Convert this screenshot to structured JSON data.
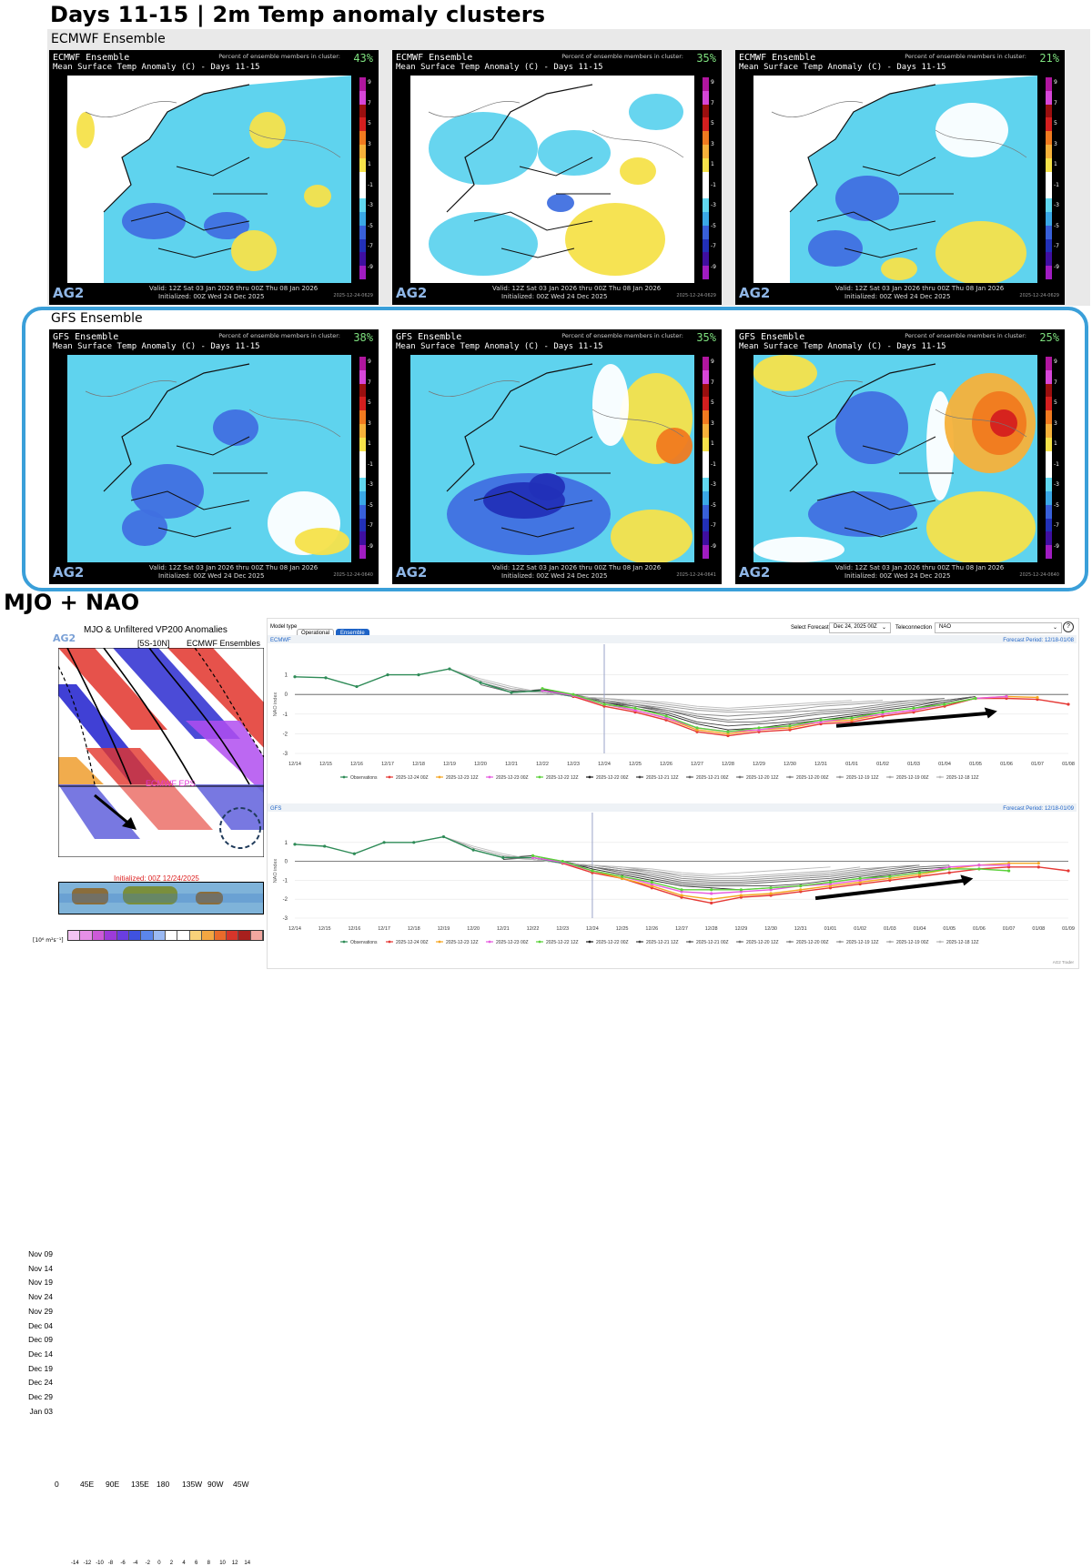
{
  "title": "Days 11-15 | 2m Temp anomaly clusters",
  "ecmwf_section_label": "ECMWF Ensemble",
  "gfs_section_label": "GFS Ensemble",
  "panel_common": {
    "subtitle": "Mean Surface Temp Anomaly (C) - Days 11-15",
    "pct_label": "Percent of ensemble members in cluster:",
    "logo": "AG2",
    "valid": "Valid: 12Z Sat 03 Jan 2026 thru 00Z Thu 08 Jan 2026",
    "init": "Initialized: 00Z Wed 24 Dec 2025",
    "colorbar_labels": [
      "9",
      "7",
      "5",
      "3",
      "1",
      "-1",
      "-3",
      "-5",
      "-7",
      "-9"
    ]
  },
  "ecmwf_panels": [
    {
      "model": "ECMWF Ensemble",
      "pct": "43%",
      "stamp": "2025-12-24-0629",
      "pattern": "cold-west"
    },
    {
      "model": "ECMWF Ensemble",
      "pct": "35%",
      "stamp": "2025-12-24-0629",
      "pattern": "mixed"
    },
    {
      "model": "ECMWF Ensemble",
      "pct": "21%",
      "stamp": "2025-12-24-0629",
      "pattern": "cold-central"
    }
  ],
  "gfs_panels": [
    {
      "model": "GFS Ensemble",
      "pct": "38%",
      "stamp": "2025-12-24-0640",
      "pattern": "cold-broad"
    },
    {
      "model": "GFS Ensemble",
      "pct": "35%",
      "stamp": "2025-12-24-0641",
      "pattern": "cold-deep"
    },
    {
      "model": "GFS Ensemble",
      "pct": "25%",
      "stamp": "2025-12-24-0640",
      "pattern": "warm-east"
    }
  ],
  "mjo_title": "MJO + NAO",
  "mjo_panel": {
    "heading": "MJO & Unfiltered VP200 Anomalies",
    "band": "[5S-10N]",
    "source": "ECMWF Ensembles",
    "logo": "AG2",
    "eps_label": "ECMWF EPS",
    "init": "Initialized: 00Z 12/24/2025",
    "dates": [
      "Nov 09",
      "Nov 14",
      "Nov 19",
      "Nov 24",
      "Nov 29",
      "Dec 04",
      "Dec 09",
      "Dec 14",
      "Dec 19",
      "Dec 24",
      "Dec 29",
      "Jan 03"
    ],
    "lons": [
      "0",
      "45E",
      "90E",
      "135E",
      "180",
      "135W",
      "90W",
      "45W"
    ],
    "cbar_unit": "[10⁶ m²s⁻¹]",
    "cbar_ticks": [
      "-14",
      "-12",
      "-10",
      "-8",
      "-6",
      "-4",
      "-2",
      "0",
      "2",
      "4",
      "6",
      "8",
      "10",
      "12",
      "14"
    ]
  },
  "nao_ui": {
    "model_type_label": "Model type",
    "btn_operational": "Operational",
    "btn_ensemble": "Ensemble",
    "select_forecast_label": "Select Forecast",
    "forecast_value": "Dec 24, 2025 00Z",
    "teleconnection_label": "Teleconnection",
    "teleconnection_value": "NAO",
    "help": "?"
  },
  "chart_data": [
    {
      "type": "line",
      "panel": "ECMWF",
      "forecast_period": "Forecast Period: 12/18-01/08",
      "ylabel": "NAO index",
      "ylim": [
        -3,
        2
      ],
      "x": [
        "12/14",
        "12/15",
        "12/16",
        "12/17",
        "12/18",
        "12/19",
        "12/20",
        "12/21",
        "12/22",
        "12/23",
        "12/24",
        "12/25",
        "12/26",
        "12/27",
        "12/28",
        "12/29",
        "12/30",
        "12/31",
        "01/01",
        "01/02",
        "01/03",
        "01/04",
        "01/05",
        "01/06",
        "01/07",
        "01/08"
      ],
      "series": [
        {
          "name": "Observations",
          "color": "#2e8b57",
          "values": [
            0.9,
            0.85,
            0.4,
            1.0,
            1.0,
            1.3,
            0.6,
            0.1,
            0.2,
            -0.1,
            null,
            null,
            null,
            null,
            null,
            null,
            null,
            null,
            null,
            null,
            null,
            null,
            null,
            null,
            null,
            null
          ]
        },
        {
          "name": "2025-12-24 00Z",
          "color": "#e53935",
          "values": [
            null,
            null,
            null,
            null,
            null,
            null,
            null,
            null,
            null,
            -0.1,
            -0.6,
            -0.9,
            -1.3,
            -1.9,
            -2.1,
            -1.9,
            -1.8,
            -1.5,
            -1.4,
            -1.1,
            -0.9,
            -0.6,
            -0.2,
            -0.2,
            -0.25,
            -0.5
          ]
        },
        {
          "name": "2025-12-23 12Z",
          "color": "#f5a623",
          "values": [
            null,
            null,
            null,
            null,
            null,
            null,
            null,
            null,
            null,
            -0.05,
            -0.5,
            -0.8,
            -1.2,
            -1.8,
            -2.0,
            -1.8,
            -1.7,
            -1.4,
            -1.3,
            -1.0,
            -0.8,
            -0.5,
            -0.2,
            -0.1,
            -0.15,
            null
          ]
        },
        {
          "name": "2025-12-23 00Z",
          "color": "#e75ce0",
          "values": [
            null,
            null,
            null,
            null,
            null,
            null,
            null,
            null,
            0.2,
            -0.05,
            -0.5,
            -0.8,
            -1.2,
            -1.7,
            -1.9,
            -1.8,
            -1.6,
            -1.4,
            -1.2,
            -1.0,
            -0.8,
            -0.5,
            -0.2,
            -0.1,
            null,
            null
          ]
        },
        {
          "name": "2025-12-22 12Z",
          "color": "#5bd13a",
          "values": [
            null,
            null,
            null,
            null,
            null,
            null,
            null,
            null,
            0.3,
            0.0,
            -0.5,
            -0.7,
            -1.1,
            -1.7,
            -1.9,
            -1.7,
            -1.6,
            -1.3,
            -1.2,
            -0.9,
            -0.7,
            -0.5,
            -0.2,
            null,
            null,
            null
          ]
        },
        {
          "name": "2025-12-22 00Z",
          "color": "#222222",
          "values": [
            null,
            null,
            null,
            null,
            null,
            null,
            null,
            0.15,
            0.25,
            0.0,
            -0.4,
            -0.7,
            -1.0,
            -1.5,
            -1.8,
            -1.7,
            -1.5,
            -1.3,
            -1.1,
            -0.9,
            -0.7,
            -0.4,
            -0.1,
            null,
            null,
            null
          ]
        },
        {
          "name": "2025-12-21 12Z",
          "color": "#444444",
          "values": [
            null,
            null,
            null,
            null,
            null,
            null,
            null,
            0.1,
            0.2,
            0.0,
            -0.4,
            -0.6,
            -0.9,
            -1.4,
            -1.6,
            -1.5,
            -1.4,
            -1.2,
            -1.0,
            -0.8,
            -0.6,
            -0.3,
            -0.1,
            null,
            null,
            null
          ]
        },
        {
          "name": "2025-12-21 00Z",
          "color": "#666666",
          "values": [
            null,
            null,
            null,
            null,
            null,
            null,
            0.5,
            0.1,
            0.2,
            0.0,
            -0.3,
            -0.6,
            -0.8,
            -1.2,
            -1.4,
            -1.4,
            -1.2,
            -1.0,
            -0.9,
            -0.7,
            -0.5,
            -0.3,
            -0.1,
            null,
            null,
            null
          ]
        },
        {
          "name": "2025-12-20 12Z",
          "color": "#777777",
          "values": [
            null,
            null,
            null,
            null,
            null,
            null,
            0.6,
            0.2,
            0.2,
            -0.1,
            -0.3,
            -0.5,
            -0.8,
            -1.1,
            -1.3,
            -1.2,
            -1.1,
            -0.9,
            -0.8,
            -0.6,
            -0.4,
            -0.2,
            null,
            null,
            null,
            null
          ]
        },
        {
          "name": "2025-12-20 00Z",
          "color": "#888888",
          "values": [
            null,
            null,
            null,
            null,
            null,
            1.3,
            0.6,
            0.2,
            0.1,
            -0.1,
            -0.3,
            -0.5,
            -0.7,
            -1.0,
            -1.1,
            -1.0,
            -0.9,
            -0.8,
            -0.7,
            -0.5,
            -0.3,
            -0.2,
            null,
            null,
            null,
            null
          ]
        },
        {
          "name": "2025-12-19 12Z",
          "color": "#999999",
          "values": [
            null,
            null,
            null,
            null,
            null,
            1.3,
            0.7,
            0.3,
            0.1,
            -0.1,
            -0.2,
            -0.4,
            -0.6,
            -0.8,
            -0.9,
            -0.9,
            -0.8,
            -0.6,
            -0.5,
            -0.4,
            -0.3,
            null,
            null,
            null,
            null,
            null
          ]
        },
        {
          "name": "2025-12-19 00Z",
          "color": "#aaaaaa",
          "values": [
            null,
            null,
            null,
            null,
            1.0,
            1.3,
            0.7,
            0.3,
            0.1,
            -0.1,
            -0.2,
            -0.3,
            -0.5,
            -0.7,
            -0.8,
            -0.7,
            -0.6,
            -0.5,
            -0.4,
            -0.3,
            null,
            null,
            null,
            null,
            null,
            null
          ]
        },
        {
          "name": "2025-12-18 12Z",
          "color": "#bbbbbb",
          "values": [
            null,
            null,
            null,
            null,
            1.0,
            1.3,
            0.8,
            0.4,
            0.1,
            -0.1,
            -0.2,
            -0.3,
            -0.4,
            -0.6,
            -0.7,
            -0.6,
            -0.5,
            -0.4,
            -0.3,
            null,
            null,
            null,
            null,
            null,
            null,
            null
          ]
        }
      ]
    },
    {
      "type": "line",
      "panel": "GFS",
      "forecast_period": "Forecast Period: 12/18-01/09",
      "ylabel": "NAO index",
      "ylim": [
        -3,
        2
      ],
      "x": [
        "12/14",
        "12/15",
        "12/16",
        "12/17",
        "12/18",
        "12/19",
        "12/20",
        "12/21",
        "12/22",
        "12/23",
        "12/24",
        "12/25",
        "12/26",
        "12/27",
        "12/28",
        "12/29",
        "12/30",
        "12/31",
        "01/01",
        "01/02",
        "01/03",
        "01/04",
        "01/05",
        "01/06",
        "01/07",
        "01/08",
        "01/09"
      ],
      "series": [
        {
          "name": "Observations",
          "color": "#2e8b57",
          "values": [
            0.9,
            0.8,
            0.4,
            1.0,
            1.0,
            1.3,
            0.6,
            0.2,
            0.2,
            -0.1,
            null,
            null,
            null,
            null,
            null,
            null,
            null,
            null,
            null,
            null,
            null,
            null,
            null,
            null,
            null,
            null,
            null
          ]
        },
        {
          "name": "2025-12-24 00Z",
          "color": "#e53935",
          "values": [
            null,
            null,
            null,
            null,
            null,
            null,
            null,
            null,
            null,
            -0.1,
            -0.6,
            -0.9,
            -1.4,
            -1.9,
            -2.2,
            -1.9,
            -1.8,
            -1.6,
            -1.4,
            -1.2,
            -1.0,
            -0.8,
            -0.6,
            -0.4,
            -0.3,
            -0.3,
            -0.5
          ]
        },
        {
          "name": "2025-12-23 12Z",
          "color": "#f5a623",
          "values": [
            null,
            null,
            null,
            null,
            null,
            null,
            null,
            null,
            null,
            -0.05,
            -0.5,
            -0.9,
            -1.3,
            -1.8,
            -2.0,
            -1.8,
            -1.7,
            -1.5,
            -1.3,
            -1.1,
            -0.9,
            -0.7,
            -0.4,
            -0.2,
            -0.1,
            -0.1,
            null
          ]
        },
        {
          "name": "2025-12-23 00Z",
          "color": "#e75ce0",
          "values": [
            null,
            null,
            null,
            null,
            null,
            null,
            null,
            null,
            0.2,
            -0.05,
            -0.5,
            -0.8,
            -1.2,
            -1.6,
            -1.7,
            -1.6,
            -1.5,
            -1.3,
            -1.2,
            -1.0,
            -0.8,
            -0.6,
            -0.3,
            -0.2,
            -0.2,
            null,
            null
          ]
        },
        {
          "name": "2025-12-22 12Z",
          "color": "#5bd13a",
          "values": [
            null,
            null,
            null,
            null,
            null,
            null,
            null,
            null,
            0.3,
            0.0,
            -0.5,
            -0.8,
            -1.1,
            -1.5,
            -1.5,
            -1.5,
            -1.4,
            -1.3,
            -1.1,
            -0.9,
            -0.8,
            -0.6,
            -0.4,
            -0.4,
            -0.5,
            null,
            null
          ]
        },
        {
          "name": "2025-12-22 00Z",
          "color": "#222222",
          "values": [
            null,
            null,
            null,
            null,
            null,
            null,
            null,
            0.2,
            0.3,
            0.0,
            -0.4,
            -0.7,
            -1.0,
            -1.3,
            -1.4,
            -1.5,
            -1.4,
            -1.3,
            -1.1,
            -0.9,
            -0.7,
            -0.5,
            -0.4,
            -0.4,
            null,
            null,
            null
          ]
        },
        {
          "name": "2025-12-21 12Z",
          "color": "#444444",
          "values": [
            null,
            null,
            null,
            null,
            null,
            null,
            null,
            0.1,
            0.2,
            0.0,
            -0.3,
            -0.6,
            -0.9,
            -1.2,
            -1.3,
            -1.3,
            -1.3,
            -1.2,
            -1.0,
            -0.8,
            -0.6,
            -0.4,
            -0.3,
            null,
            null,
            null,
            null
          ]
        },
        {
          "name": "2025-12-21 00Z",
          "color": "#666666",
          "values": [
            null,
            null,
            null,
            null,
            null,
            null,
            0.6,
            0.2,
            0.2,
            0.0,
            -0.3,
            -0.5,
            -0.8,
            -1.1,
            -1.2,
            -1.2,
            -1.1,
            -1.0,
            -0.9,
            -0.7,
            -0.5,
            -0.3,
            -0.2,
            null,
            null,
            null,
            null
          ]
        },
        {
          "name": "2025-12-20 12Z",
          "color": "#777777",
          "values": [
            null,
            null,
            null,
            null,
            null,
            null,
            0.6,
            0.2,
            0.2,
            -0.1,
            -0.3,
            -0.5,
            -0.7,
            -1.0,
            -1.1,
            -1.1,
            -1.0,
            -0.9,
            -0.8,
            -0.6,
            -0.4,
            -0.2,
            null,
            null,
            null,
            null,
            null
          ]
        },
        {
          "name": "2025-12-20 00Z",
          "color": "#888888",
          "values": [
            null,
            null,
            null,
            null,
            null,
            1.3,
            0.6,
            0.2,
            0.1,
            -0.1,
            -0.2,
            -0.4,
            -0.6,
            -0.9,
            -1.0,
            -1.0,
            -0.9,
            -0.8,
            -0.7,
            -0.5,
            -0.3,
            -0.2,
            null,
            null,
            null,
            null,
            null
          ]
        },
        {
          "name": "2025-12-19 12Z",
          "color": "#999999",
          "values": [
            null,
            null,
            null,
            null,
            null,
            1.3,
            0.7,
            0.3,
            0.1,
            -0.1,
            -0.2,
            -0.4,
            -0.5,
            -0.8,
            -0.9,
            -0.9,
            -0.8,
            -0.7,
            -0.6,
            -0.4,
            -0.3,
            null,
            null,
            null,
            null,
            null,
            null
          ]
        },
        {
          "name": "2025-12-19 00Z",
          "color": "#aaaaaa",
          "values": [
            null,
            null,
            null,
            null,
            1.0,
            1.3,
            0.7,
            0.3,
            0.1,
            -0.1,
            -0.2,
            -0.3,
            -0.5,
            -0.7,
            -0.8,
            -0.8,
            -0.7,
            -0.6,
            -0.5,
            -0.3,
            null,
            null,
            null,
            null,
            null,
            null,
            null
          ]
        },
        {
          "name": "2025-12-18 12Z",
          "color": "#bbbbbb",
          "values": [
            null,
            null,
            null,
            null,
            1.0,
            1.3,
            0.8,
            0.4,
            0.1,
            -0.1,
            -0.2,
            -0.3,
            -0.4,
            -0.6,
            -0.7,
            -0.6,
            -0.5,
            -0.4,
            -0.3,
            null,
            null,
            null,
            null,
            null,
            null,
            null,
            null
          ]
        }
      ]
    }
  ],
  "nao_footer": "AG2 Trader",
  "y_ticks": [
    "1",
    "0",
    "-1",
    "-2",
    "-3"
  ]
}
